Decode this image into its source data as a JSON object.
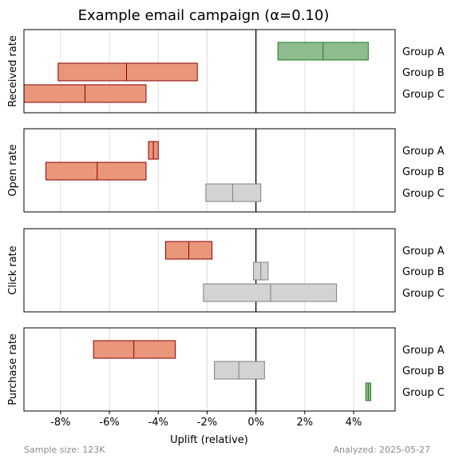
{
  "chart_data": {
    "type": "bar",
    "subtype": "confidence-interval-ranges",
    "title": "Example email campaign (α=0.10)",
    "xlabel": "Uplift (relative)",
    "xlim": [
      -9.5,
      5.7
    ],
    "x_ticks": [
      -8,
      -6,
      -4,
      -2,
      0,
      2,
      4
    ],
    "x_tick_labels": [
      "-8%",
      "-6%",
      "-4%",
      "-2%",
      "0%",
      "2%",
      "4%"
    ],
    "grid": "vertical",
    "groups": [
      "Group A",
      "Group B",
      "Group C"
    ],
    "status_colors": {
      "positive": {
        "fill": "#8fbc8f",
        "edge": "#1e7b1e"
      },
      "negative": {
        "fill": "#e9967a",
        "edge": "#8b0000"
      },
      "neutral": {
        "fill": "#d3d3d3",
        "edge": "#808080"
      }
    },
    "panels": [
      {
        "ylabel": "Received rate",
        "series": [
          {
            "group": "Group A",
            "low": 0.9,
            "mid": 2.75,
            "high": 4.6,
            "status": "positive"
          },
          {
            "group": "Group B",
            "low": -8.1,
            "mid": -5.3,
            "high": -2.4,
            "status": "negative"
          },
          {
            "group": "Group C",
            "low": -9.5,
            "mid": -7.0,
            "high": -4.5,
            "status": "negative"
          }
        ]
      },
      {
        "ylabel": "Open rate",
        "series": [
          {
            "group": "Group A",
            "low": -4.4,
            "mid": -4.2,
            "high": -4.0,
            "status": "negative"
          },
          {
            "group": "Group B",
            "low": -8.6,
            "mid": -6.5,
            "high": -4.5,
            "status": "negative"
          },
          {
            "group": "Group C",
            "low": -2.05,
            "mid": -0.95,
            "high": 0.2,
            "status": "neutral"
          }
        ]
      },
      {
        "ylabel": "Click rate",
        "series": [
          {
            "group": "Group A",
            "low": -3.7,
            "mid": -2.75,
            "high": -1.8,
            "status": "negative"
          },
          {
            "group": "Group B",
            "low": -0.1,
            "mid": 0.2,
            "high": 0.5,
            "status": "neutral"
          },
          {
            "group": "Group C",
            "low": -2.15,
            "mid": 0.6,
            "high": 3.3,
            "status": "neutral"
          }
        ]
      },
      {
        "ylabel": "Purchase rate",
        "series": [
          {
            "group": "Group A",
            "low": -6.65,
            "mid": -5.0,
            "high": -3.3,
            "status": "negative"
          },
          {
            "group": "Group B",
            "low": -1.7,
            "mid": -0.7,
            "high": 0.35,
            "status": "neutral"
          },
          {
            "group": "Group C",
            "low": 4.5,
            "mid": 4.6,
            "high": 4.7,
            "status": "positive"
          }
        ]
      }
    ]
  },
  "footer": {
    "sample_size": "Sample size: 123K",
    "analyzed": "Analyzed: 2025-05-27"
  }
}
